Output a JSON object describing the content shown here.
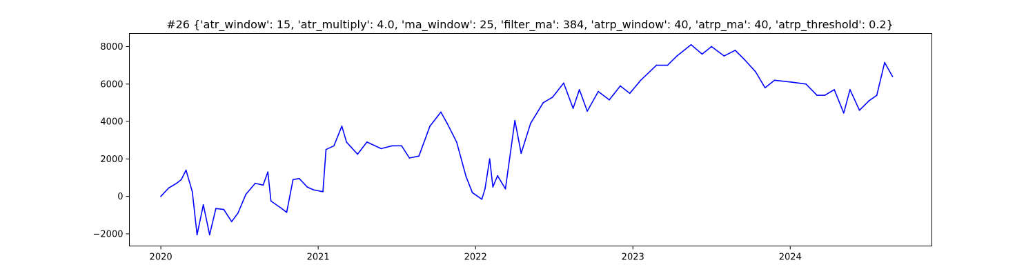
{
  "chart_data": {
    "type": "line",
    "title": "#26 {'atr_window': 15, 'atr_multiply': 4.0, 'ma_window': 25, 'filter_ma': 384, 'atrp_window': 40, 'atrp_ma': 40, 'atrp_threshold': 0.2}",
    "xlabel": "",
    "ylabel": "",
    "xlim": [
      2019.8,
      2024.9
    ],
    "ylim": [
      -2650,
      8700
    ],
    "grid": false,
    "x_ticks": [
      {
        "value": 2020,
        "label": "2020"
      },
      {
        "value": 2021,
        "label": "2021"
      },
      {
        "value": 2022,
        "label": "2022"
      },
      {
        "value": 2023,
        "label": "2023"
      },
      {
        "value": 2024,
        "label": "2024"
      }
    ],
    "y_ticks": [
      {
        "value": -2000,
        "label": "−2000"
      },
      {
        "value": 0,
        "label": "0"
      },
      {
        "value": 2000,
        "label": "2000"
      },
      {
        "value": 4000,
        "label": "4000"
      },
      {
        "value": 6000,
        "label": "6000"
      },
      {
        "value": 8000,
        "label": "8000"
      }
    ],
    "series": [
      {
        "color": "#0000ff",
        "x": [
          2020.0,
          2020.05,
          2020.1,
          2020.13,
          2020.16,
          2020.2,
          2020.23,
          2020.27,
          2020.31,
          2020.35,
          2020.4,
          2020.45,
          2020.49,
          2020.54,
          2020.6,
          2020.65,
          2020.68,
          2020.7,
          2020.76,
          2020.8,
          2020.84,
          2020.88,
          2020.93,
          2020.97,
          2021.03,
          2021.05,
          2021.1,
          2021.15,
          2021.18,
          2021.25,
          2021.31,
          2021.4,
          2021.47,
          2021.53,
          2021.58,
          2021.64,
          2021.71,
          2021.78,
          2021.82,
          2021.88,
          2021.94,
          2021.98,
          2022.04,
          2022.06,
          2022.09,
          2022.11,
          2022.14,
          2022.19,
          2022.25,
          2022.29,
          2022.35,
          2022.43,
          2022.49,
          2022.56,
          2022.62,
          2022.66,
          2022.71,
          2022.78,
          2022.85,
          2022.92,
          2022.98,
          2023.05,
          2023.15,
          2023.22,
          2023.28,
          2023.37,
          2023.44,
          2023.5,
          2023.58,
          2023.65,
          2023.71,
          2023.78,
          2023.84,
          2023.9,
          2024.01,
          2024.1,
          2024.17,
          2024.22,
          2024.28,
          2024.34,
          2024.38,
          2024.44,
          2024.5,
          2024.55,
          2024.6,
          2024.65
        ],
        "y": [
          0,
          450,
          700,
          900,
          1400,
          250,
          -2050,
          -450,
          -2050,
          -650,
          -700,
          -1350,
          -900,
          100,
          700,
          600,
          1300,
          -250,
          -600,
          -850,
          900,
          950,
          500,
          350,
          250,
          2500,
          2700,
          3750,
          2900,
          2250,
          2900,
          2550,
          2700,
          2700,
          2050,
          2150,
          3750,
          4500,
          3900,
          2900,
          1050,
          200,
          -150,
          400,
          2000,
          500,
          1100,
          400,
          4050,
          2300,
          3900,
          5000,
          5300,
          6050,
          4700,
          5700,
          4550,
          5600,
          5150,
          5900,
          5500,
          6200,
          7000,
          7000,
          7500,
          8100,
          7600,
          8000,
          7500,
          7800,
          7300,
          6650,
          5800,
          6200,
          6100,
          6000,
          5400,
          5400,
          5700,
          4450,
          5700,
          4600,
          5100,
          5400,
          7150,
          6400
        ]
      }
    ]
  }
}
